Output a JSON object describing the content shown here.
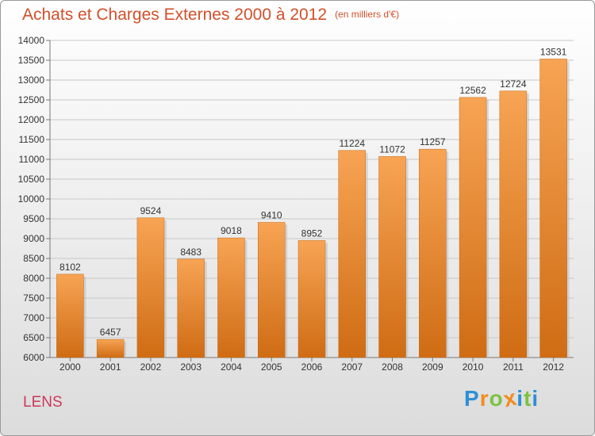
{
  "chart_data": {
    "type": "bar",
    "title": "Achats et Charges Externes 2000 à 2012",
    "subtitle": "(en milliers d'€)",
    "categories": [
      "2000",
      "2001",
      "2002",
      "2003",
      "2004",
      "2005",
      "2006",
      "2007",
      "2008",
      "2009",
      "2010",
      "2011",
      "2012"
    ],
    "values": [
      8102,
      6457,
      9524,
      8483,
      9018,
      9410,
      8952,
      11224,
      11072,
      11257,
      12562,
      12724,
      13531
    ],
    "ylim": [
      6000,
      14000
    ],
    "yticks": [
      6000,
      6500,
      7000,
      7500,
      8000,
      8500,
      9000,
      9500,
      10000,
      10500,
      11000,
      11500,
      12000,
      12500,
      13000,
      13500,
      14000
    ],
    "grid": true,
    "bar_color": "#e8882e",
    "xlabel": "",
    "ylabel": ""
  },
  "footer": {
    "city": "LENS",
    "logo": [
      "P",
      "r",
      "o",
      "x",
      "i",
      "t",
      "i"
    ],
    "logo_colors": [
      "#2d8fd6",
      "#f28c1e",
      "#7cc242",
      "#f28c1e",
      "#2d8fd6",
      "#7cc242",
      "#2d8fd6"
    ]
  }
}
